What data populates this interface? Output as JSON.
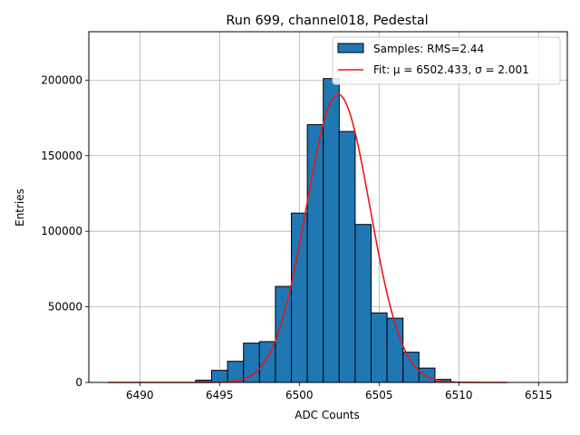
{
  "chart_data": {
    "type": "bar",
    "title": "Run 699, channel018, Pedestal",
    "xlabel": "ADC Counts",
    "ylabel": "Entries",
    "xlim": [
      6486.8,
      6516.8
    ],
    "ylim": [
      0,
      232000
    ],
    "grid": true,
    "legend_position": "top-right",
    "bins": [
      {
        "x0": 6493.5,
        "x1": 6494.5,
        "count": 1500
      },
      {
        "x0": 6494.5,
        "x1": 6495.5,
        "count": 8000
      },
      {
        "x0": 6495.5,
        "x1": 6496.5,
        "count": 14000
      },
      {
        "x0": 6496.5,
        "x1": 6497.5,
        "count": 26000
      },
      {
        "x0": 6497.5,
        "x1": 6498.5,
        "count": 27000
      },
      {
        "x0": 6498.5,
        "x1": 6499.5,
        "count": 63500
      },
      {
        "x0": 6499.5,
        "x1": 6500.5,
        "count": 112000
      },
      {
        "x0": 6500.5,
        "x1": 6501.5,
        "count": 170500
      },
      {
        "x0": 6501.5,
        "x1": 6502.5,
        "count": 201000
      },
      {
        "x0": 6502.5,
        "x1": 6503.5,
        "count": 166000
      },
      {
        "x0": 6503.5,
        "x1": 6504.5,
        "count": 104500
      },
      {
        "x0": 6504.5,
        "x1": 6505.5,
        "count": 46000
      },
      {
        "x0": 6505.5,
        "x1": 6506.5,
        "count": 42500
      },
      {
        "x0": 6506.5,
        "x1": 6507.5,
        "count": 20000
      },
      {
        "x0": 6507.5,
        "x1": 6508.5,
        "count": 9500
      },
      {
        "x0": 6508.5,
        "x1": 6509.5,
        "count": 2000
      }
    ],
    "fit": {
      "mu": 6502.433,
      "sigma": 2.001,
      "amplitude": 190500,
      "x_range": [
        6488,
        6513
      ]
    },
    "x_ticks": [
      6490,
      6495,
      6500,
      6505,
      6510,
      6515
    ],
    "y_ticks": [
      0,
      50000,
      100000,
      150000,
      200000
    ],
    "legend": [
      {
        "label": "Samples: RMS=2.44",
        "kind": "patch"
      },
      {
        "label": "Fit: μ = 6502.433, σ = 2.001",
        "kind": "line"
      }
    ],
    "colors": {
      "bar_fill": "#1f77b4",
      "bar_edge": "#000000",
      "fit_line": "#e6191c",
      "grid": "#b0b0b0"
    }
  }
}
